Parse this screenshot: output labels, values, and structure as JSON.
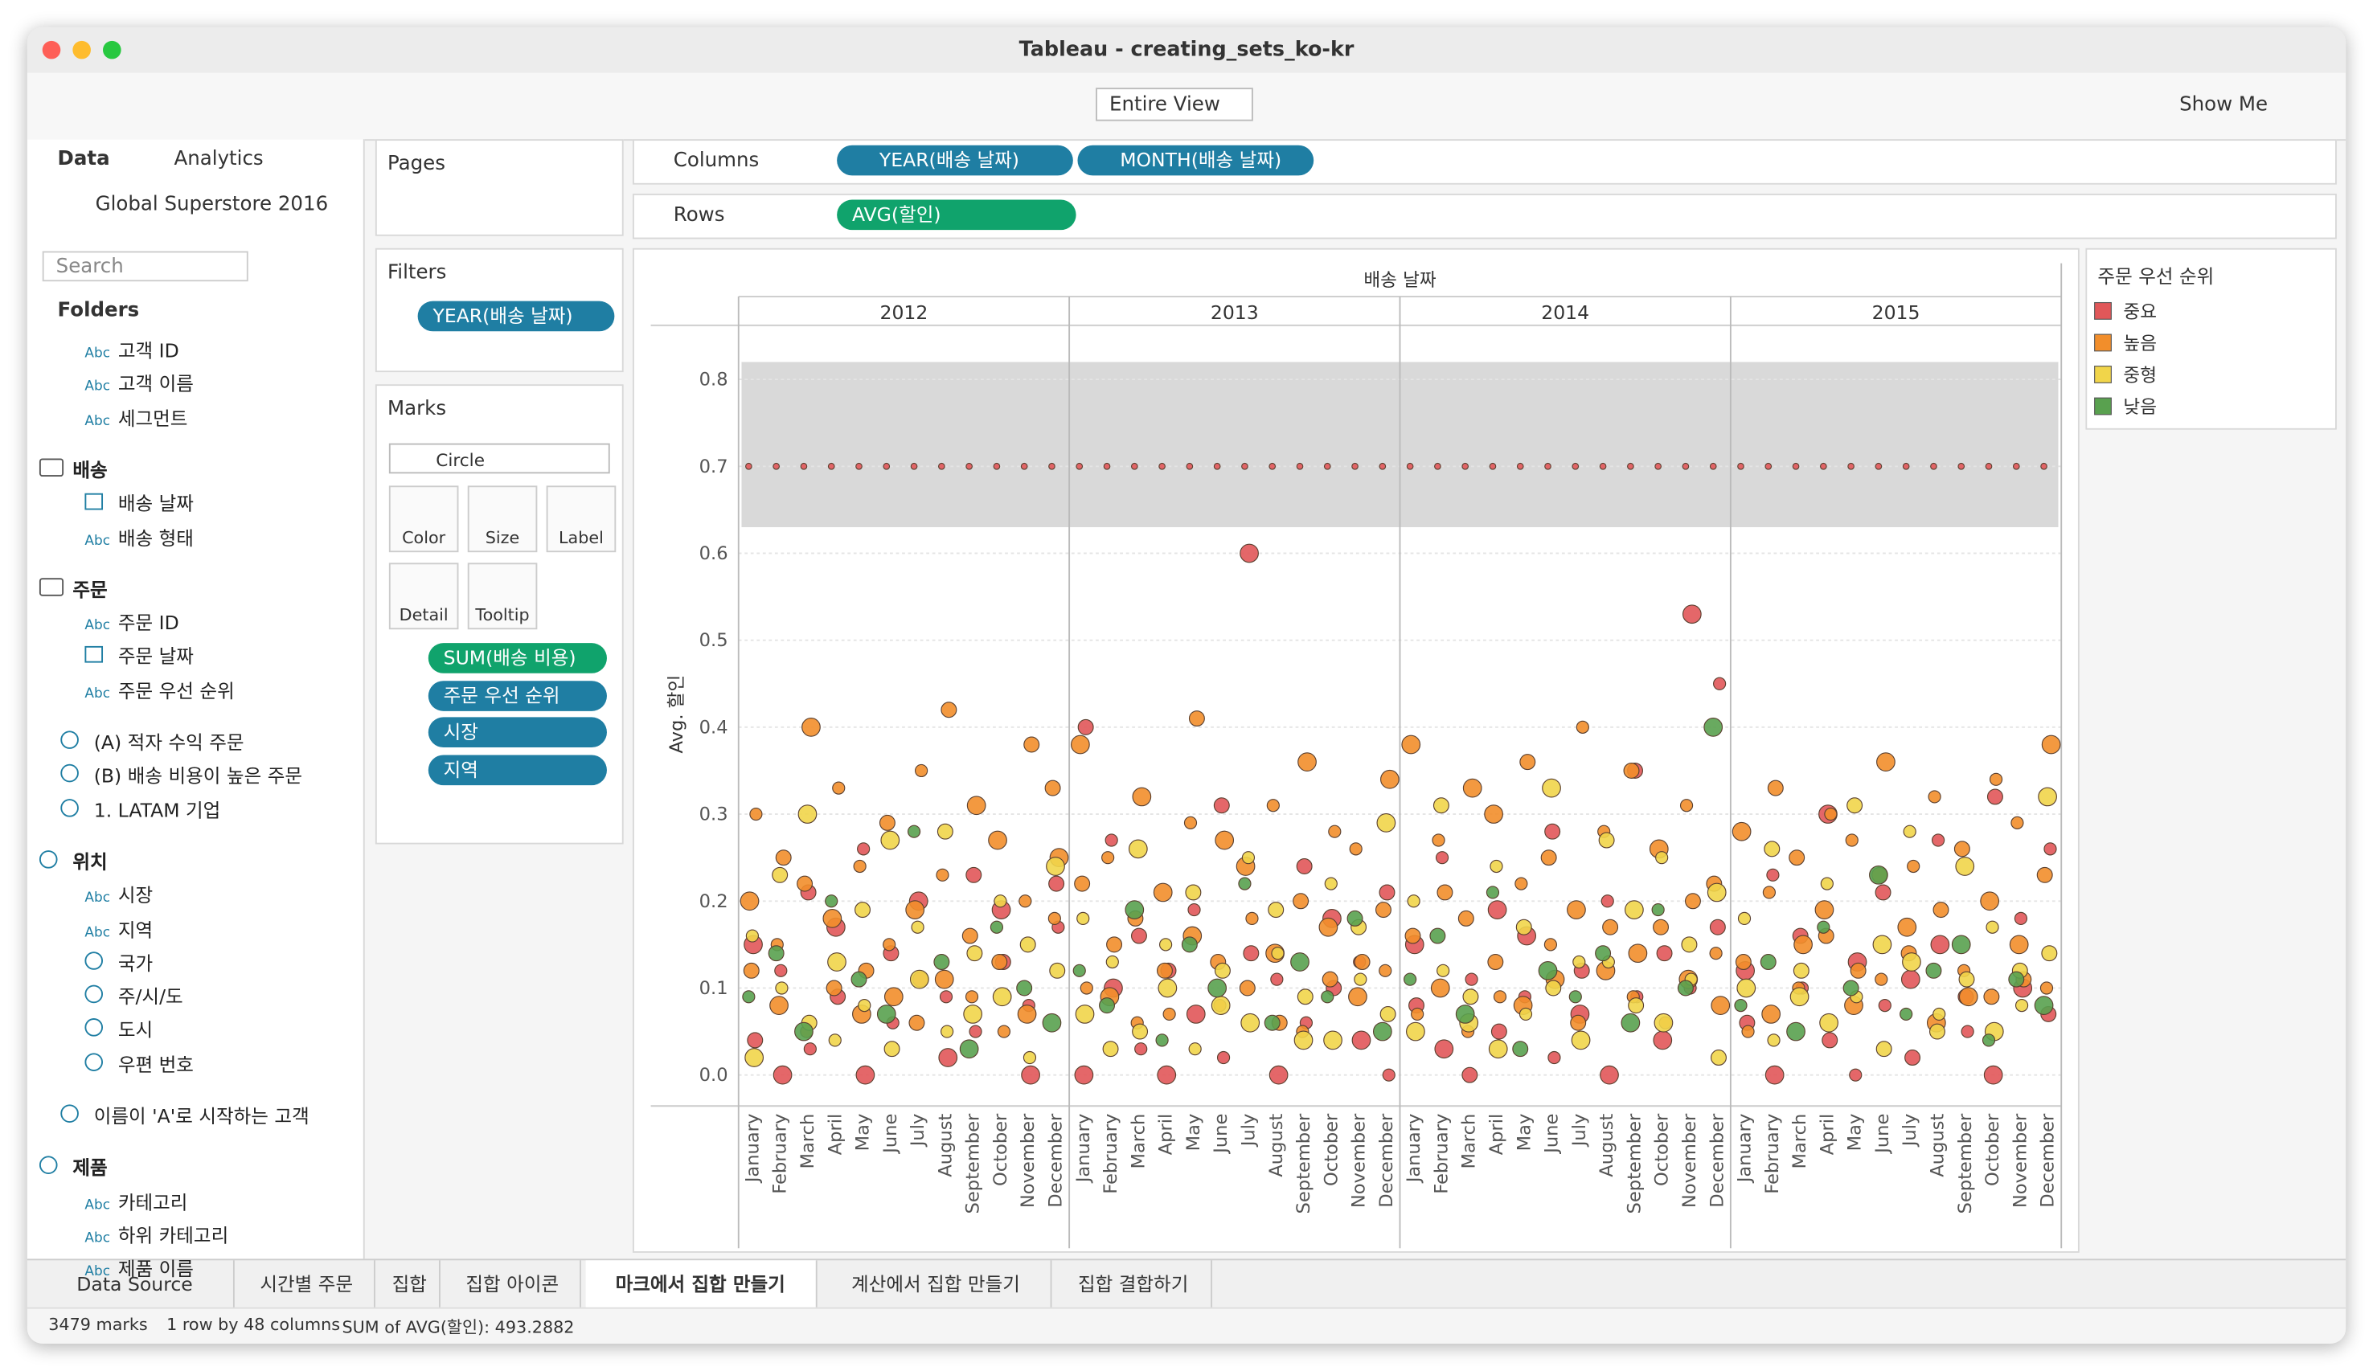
{
  "window_title": "Tableau - creating_sets_ko-kr",
  "toolbar": {
    "view": "Entire View",
    "show_me": "Show Me"
  },
  "sidebar": {
    "tabs": [
      "Data",
      "Analytics"
    ],
    "datasource": "Global Superstore 2016",
    "search": "Search",
    "folders_label": "Folders",
    "items": [
      {
        "icon": "Abc",
        "label": "고객 ID",
        "level": 1
      },
      {
        "icon": "Abc",
        "label": "고객 이름",
        "level": 1
      },
      {
        "icon": "Abc",
        "label": "세그먼트",
        "level": 1
      },
      {
        "icon": "folder",
        "label": "배송",
        "level": 0
      },
      {
        "icon": "date",
        "label": "배송 날짜",
        "level": 1
      },
      {
        "icon": "Abc",
        "label": "배송 형태",
        "level": 1
      },
      {
        "icon": "folder",
        "label": "주문",
        "level": 0
      },
      {
        "icon": "Abc",
        "label": "주문 ID",
        "level": 1
      },
      {
        "icon": "date",
        "label": "주문 날짜",
        "level": 1
      },
      {
        "icon": "Abc",
        "label": "주문 우선 순위",
        "level": 1
      },
      {
        "icon": "set",
        "label": "(A) 적자 수익 주문",
        "level": 0
      },
      {
        "icon": "set",
        "label": "(B) 배송 비용이 높은 주문",
        "level": 0
      },
      {
        "icon": "set",
        "label": "1. LATAM 기업",
        "level": 0
      },
      {
        "icon": "hier",
        "label": "위치",
        "level": 0
      },
      {
        "icon": "Abc",
        "label": "시장",
        "level": 1
      },
      {
        "icon": "Abc",
        "label": "지역",
        "level": 1
      },
      {
        "icon": "geo",
        "label": "국가",
        "level": 1
      },
      {
        "icon": "geo",
        "label": "주/시/도",
        "level": 1
      },
      {
        "icon": "geo",
        "label": "도시",
        "level": 1
      },
      {
        "icon": "geo",
        "label": "우편 번호",
        "level": 1
      },
      {
        "icon": "set",
        "label": "이름이 'A'로 시작하는 고객",
        "level": 0
      },
      {
        "icon": "hier",
        "label": "제품",
        "level": 0
      },
      {
        "icon": "Abc",
        "label": "카테고리",
        "level": 1
      },
      {
        "icon": "Abc",
        "label": "하위 카테고리",
        "level": 1
      },
      {
        "icon": "Abc",
        "label": "제품 이름",
        "level": 1
      }
    ]
  },
  "shelves": {
    "pages": "Pages",
    "columns_label": "Columns",
    "columns": [
      "YEAR(배송 날짜)",
      "MONTH(배송 날짜)"
    ],
    "rows_label": "Rows",
    "rows": [
      "AVG(할인)"
    ],
    "filters_label": "Filters",
    "filters": [
      "YEAR(배송 날짜)"
    ]
  },
  "marks": {
    "label": "Marks",
    "type": "Circle",
    "buttons": [
      "Color",
      "Size",
      "Label",
      "Detail",
      "Tooltip"
    ],
    "pills": [
      "SUM(배송 비용)",
      "주문 우선 순위",
      "시장",
      "지역"
    ]
  },
  "tabs": {
    "items": [
      "Data Source",
      "시간별 주문",
      "집합",
      "집합 아이콘",
      "마크에서 집합 만들기",
      "계산에서 집합 만들기",
      "집합 결합하기"
    ],
    "active": 4
  },
  "status": [
    "3479 marks",
    "1 row by 48 columns",
    "SUM of AVG(할인): 493.2882"
  ],
  "chart_data": {
    "type": "strip",
    "header": "배송 날짜",
    "years": [
      "2012",
      "2013",
      "2014",
      "2015"
    ],
    "categories": [
      "January",
      "February",
      "March",
      "April",
      "May",
      "June",
      "July",
      "August",
      "September",
      "October",
      "November",
      "December",
      "January",
      "February",
      "March",
      "April",
      "May",
      "June",
      "July",
      "August",
      "September",
      "October",
      "November",
      "December",
      "January",
      "February",
      "March",
      "April",
      "May",
      "June",
      "July",
      "August",
      "September",
      "October",
      "November",
      "December",
      "January",
      "February",
      "March",
      "April",
      "May",
      "June",
      "July",
      "August",
      "September",
      "October",
      "November",
      "December"
    ],
    "y_label": "Avg. 할인",
    "ylim": [
      -0.02,
      0.85
    ],
    "yticks": [
      {
        "value": 0,
        "label": "0.0"
      },
      0.1,
      0.2,
      0.3,
      0.4,
      0.5,
      0.6,
      0.7,
      0.8
    ],
    "band": [
      0.63,
      0.82
    ],
    "legend_title": "주문 우선 순위",
    "series": [
      {
        "name": "중요",
        "color": "#e15759",
        "values": [
          [
            0.7,
            0.04,
            0.15
          ],
          [
            0.7,
            0.0,
            0.12
          ],
          [
            0.7,
            0.03,
            0.21
          ],
          [
            0.7,
            0.09,
            0.17
          ],
          [
            0.7,
            0.0,
            0.26
          ],
          [
            0.7,
            0.06,
            0.14
          ],
          [
            0.7,
            0.11,
            0.2
          ],
          [
            0.7,
            0.02,
            0.09
          ],
          [
            0.7,
            0.05,
            0.23
          ],
          [
            0.7,
            0.13,
            0.19
          ],
          [
            0.7,
            0.0,
            0.08
          ],
          [
            0.7,
            0.17,
            0.22
          ],
          [
            0.7,
            0.4,
            0.0
          ],
          [
            0.7,
            0.1,
            0.27
          ],
          [
            0.7,
            0.03,
            0.16
          ],
          [
            0.7,
            0.12,
            0.0
          ],
          [
            0.7,
            0.07,
            0.19
          ],
          [
            0.7,
            0.02,
            0.31
          ],
          [
            0.7,
            0.14,
            0.6
          ],
          [
            0.7,
            0.0,
            0.11
          ],
          [
            0.7,
            0.06,
            0.24
          ],
          [
            0.7,
            0.1,
            0.18
          ],
          [
            0.7,
            0.04,
            0.13
          ],
          [
            0.7,
            0.0,
            0.21
          ],
          [
            0.7,
            0.08,
            0.15
          ],
          [
            0.7,
            0.03,
            0.25
          ],
          [
            0.7,
            0.11,
            0.0
          ],
          [
            0.7,
            0.05,
            0.19
          ],
          [
            0.7,
            0.16,
            0.09
          ],
          [
            0.7,
            0.02,
            0.28
          ],
          [
            0.7,
            0.12,
            0.07
          ],
          [
            0.7,
            0.0,
            0.2
          ],
          [
            0.7,
            0.09,
            0.35
          ],
          [
            0.7,
            0.14,
            0.04
          ],
          [
            0.7,
            0.53,
            0.1
          ],
          [
            0.7,
            0.45,
            0.17
          ],
          [
            0.7,
            0.06,
            0.12
          ],
          [
            0.7,
            0.0,
            0.23
          ],
          [
            0.7,
            0.1,
            0.16
          ],
          [
            0.7,
            0.04,
            0.3
          ],
          [
            0.7,
            0.13,
            0.0
          ],
          [
            0.7,
            0.08,
            0.21
          ],
          [
            0.7,
            0.02,
            0.11
          ],
          [
            0.7,
            0.15,
            0.27
          ],
          [
            0.7,
            0.05,
            0.09
          ],
          [
            0.7,
            0.32,
            0.0
          ],
          [
            0.7,
            0.1,
            0.18
          ],
          [
            0.7,
            0.26,
            0.07
          ]
        ]
      },
      {
        "name": "높음",
        "color": "#f28e2b",
        "values": [
          [
            0.12,
            0.2,
            0.3
          ],
          [
            0.08,
            0.15,
            0.25
          ],
          [
            0.05,
            0.22,
            0.4
          ],
          [
            0.1,
            0.18,
            0.33
          ],
          [
            0.07,
            0.24,
            0.12
          ],
          [
            0.15,
            0.29,
            0.09
          ],
          [
            0.06,
            0.19,
            0.35
          ],
          [
            0.11,
            0.23,
            0.42
          ],
          [
            0.09,
            0.16,
            0.31
          ],
          [
            0.13,
            0.27,
            0.05
          ],
          [
            0.07,
            0.2,
            0.38
          ],
          [
            0.18,
            0.33,
            0.25
          ],
          [
            0.22,
            0.38,
            0.1
          ],
          [
            0.09,
            0.25,
            0.15
          ],
          [
            0.06,
            0.18,
            0.32
          ],
          [
            0.12,
            0.21,
            0.07
          ],
          [
            0.16,
            0.29,
            0.41
          ],
          [
            0.08,
            0.13,
            0.27
          ],
          [
            0.1,
            0.24,
            0.18
          ],
          [
            0.14,
            0.31,
            0.06
          ],
          [
            0.05,
            0.2,
            0.36
          ],
          [
            0.11,
            0.17,
            0.28
          ],
          [
            0.09,
            0.26,
            0.13
          ],
          [
            0.12,
            0.19,
            0.34
          ],
          [
            0.16,
            0.38,
            0.07
          ],
          [
            0.1,
            0.27,
            0.21
          ],
          [
            0.05,
            0.18,
            0.33
          ],
          [
            0.13,
            0.3,
            0.09
          ],
          [
            0.08,
            0.22,
            0.36
          ],
          [
            0.15,
            0.25,
            0.11
          ],
          [
            0.06,
            0.19,
            0.4
          ],
          [
            0.12,
            0.28,
            0.17
          ],
          [
            0.09,
            0.35,
            0.14
          ],
          [
            0.17,
            0.26,
            0.06
          ],
          [
            0.11,
            0.31,
            0.2
          ],
          [
            0.14,
            0.22,
            0.08
          ],
          [
            0.13,
            0.28,
            0.05
          ],
          [
            0.07,
            0.21,
            0.33
          ],
          [
            0.1,
            0.25,
            0.15
          ],
          [
            0.16,
            0.19,
            0.3
          ],
          [
            0.08,
            0.27,
            0.12
          ],
          [
            0.11,
            0.23,
            0.36
          ],
          [
            0.14,
            0.17,
            0.24
          ],
          [
            0.06,
            0.32,
            0.19
          ],
          [
            0.12,
            0.26,
            0.09
          ],
          [
            0.09,
            0.2,
            0.34
          ],
          [
            0.15,
            0.29,
            0.11
          ],
          [
            0.1,
            0.23,
            0.38
          ]
        ]
      },
      {
        "name": "중형",
        "color": "#f1d54a",
        "values": [
          [
            0.02,
            0.16
          ],
          [
            0.1,
            0.23
          ],
          [
            0.06,
            0.3
          ],
          [
            0.13,
            0.04
          ],
          [
            0.08,
            0.19
          ],
          [
            0.03,
            0.27
          ],
          [
            0.11,
            0.17
          ],
          [
            0.05,
            0.28
          ],
          [
            0.14,
            0.07
          ],
          [
            0.09,
            0.2
          ],
          [
            0.02,
            0.15
          ],
          [
            0.12,
            0.24
          ],
          [
            0.07,
            0.18
          ],
          [
            0.13,
            0.03
          ],
          [
            0.05,
            0.26
          ],
          [
            0.1,
            0.15
          ],
          [
            0.03,
            0.21
          ],
          [
            0.12,
            0.08
          ],
          [
            0.06,
            0.25
          ],
          [
            0.14,
            0.19
          ],
          [
            0.09,
            0.04
          ],
          [
            0.04,
            0.22
          ],
          [
            0.11,
            0.17
          ],
          [
            0.07,
            0.29
          ],
          [
            0.05,
            0.2
          ],
          [
            0.12,
            0.31
          ],
          [
            0.09,
            0.06
          ],
          [
            0.03,
            0.24
          ],
          [
            0.07,
            0.17
          ],
          [
            0.1,
            0.33
          ],
          [
            0.04,
            0.13
          ],
          [
            0.13,
            0.27
          ],
          [
            0.08,
            0.19
          ],
          [
            0.06,
            0.25
          ],
          [
            0.11,
            0.15
          ],
          [
            0.02,
            0.21
          ],
          [
            0.1,
            0.18
          ],
          [
            0.04,
            0.26
          ],
          [
            0.12,
            0.09
          ],
          [
            0.06,
            0.22
          ],
          [
            0.09,
            0.31
          ],
          [
            0.03,
            0.15
          ],
          [
            0.13,
            0.28
          ],
          [
            0.07,
            0.05
          ],
          [
            0.11,
            0.24
          ],
          [
            0.05,
            0.17
          ],
          [
            0.08,
            0.12
          ],
          [
            0.14,
            0.32
          ]
        ]
      },
      {
        "name": "낮음",
        "color": "#59a14f",
        "values": [
          [
            0.09
          ],
          [
            0.14
          ],
          [
            0.05
          ],
          [
            0.2
          ],
          [
            0.11
          ],
          [
            0.07
          ],
          [
            0.28
          ],
          [
            0.13
          ],
          [
            0.03
          ],
          [
            0.17
          ],
          [
            0.1
          ],
          [
            0.06
          ],
          [
            0.12
          ],
          [
            0.08
          ],
          [
            0.19
          ],
          [
            0.04
          ],
          [
            0.15
          ],
          [
            0.1
          ],
          [
            0.22
          ],
          [
            0.06
          ],
          [
            0.13
          ],
          [
            0.09
          ],
          [
            0.18
          ],
          [
            0.05
          ],
          [
            0.11
          ],
          [
            0.16
          ],
          [
            0.07
          ],
          [
            0.21
          ],
          [
            0.03
          ],
          [
            0.12
          ],
          [
            0.09
          ],
          [
            0.14
          ],
          [
            0.06
          ],
          [
            0.19
          ],
          [
            0.1
          ],
          [
            0.4
          ],
          [
            0.08
          ],
          [
            0.13
          ],
          [
            0.05
          ],
          [
            0.17
          ],
          [
            0.1
          ],
          [
            0.23
          ],
          [
            0.07
          ],
          [
            0.12
          ],
          [
            0.15
          ],
          [
            0.04
          ],
          [
            0.11
          ],
          [
            0.08
          ]
        ]
      }
    ]
  }
}
